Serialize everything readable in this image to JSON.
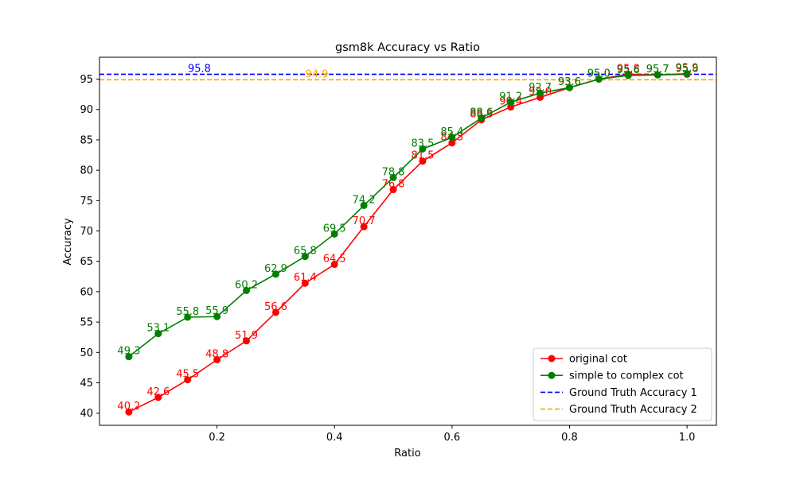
{
  "chart_data": {
    "type": "line",
    "title": "gsm8k Accuracy vs Ratio",
    "xlabel": "Ratio",
    "ylabel": "Accuracy",
    "xlim": [
      0.0,
      1.05
    ],
    "ylim": [
      38,
      98.6
    ],
    "xticks": [
      0.2,
      0.4,
      0.6,
      0.8,
      1.0
    ],
    "xtick_labels": [
      "0.2",
      "0.4",
      "0.6",
      "0.8",
      "1.0"
    ],
    "yticks": [
      40,
      45,
      50,
      55,
      60,
      65,
      70,
      75,
      80,
      85,
      90,
      95
    ],
    "ytick_labels": [
      "40",
      "45",
      "50",
      "55",
      "60",
      "65",
      "70",
      "75",
      "80",
      "85",
      "90",
      "95"
    ],
    "grid": false,
    "legend_position": "bottom-right",
    "x": [
      0.05,
      0.1,
      0.15,
      0.2,
      0.25,
      0.3,
      0.35,
      0.4,
      0.45,
      0.5,
      0.55,
      0.6,
      0.65,
      0.7,
      0.75,
      0.8,
      0.85,
      0.9,
      0.95,
      1.0
    ],
    "series": [
      {
        "name": "original cot",
        "color": "#ff0000",
        "marker": "circle",
        "values": [
          40.2,
          42.6,
          45.5,
          48.8,
          51.9,
          56.6,
          61.4,
          64.5,
          70.7,
          76.8,
          81.5,
          84.5,
          88.3,
          90.4,
          92.0,
          93.6,
          95.0,
          95.8,
          95.7,
          95.8
        ],
        "labels": [
          "40.2",
          "42.6",
          "45.5",
          "48.8",
          "51.9",
          "56.6",
          "61.4",
          "64.5",
          "70.7",
          "76.8",
          "81.5",
          "84.5",
          "88.3",
          "90.4",
          "92.0",
          "93.6",
          "95.0",
          "95.8",
          "95.7",
          "95.8"
        ]
      },
      {
        "name": "simple to complex cot",
        "color": "#008000",
        "marker": "circle",
        "values": [
          49.3,
          53.1,
          55.8,
          55.9,
          60.2,
          62.9,
          65.8,
          69.5,
          74.2,
          78.8,
          83.5,
          85.4,
          88.6,
          91.2,
          92.7,
          93.6,
          95.0,
          95.6,
          95.7,
          95.9
        ],
        "labels": [
          "49.3",
          "53.1",
          "55.8",
          "55.9",
          "60.2",
          "62.9",
          "65.8",
          "69.5",
          "74.2",
          "78.8",
          "83.5",
          "85.4",
          "88.6",
          "91.2",
          "92.7",
          "93.6",
          "95.0",
          "95.6",
          "95.7",
          "95.9"
        ]
      }
    ],
    "reference_lines": [
      {
        "name": "Ground Truth Accuracy 1",
        "value": 95.8,
        "label": "95.8",
        "label_x": 0.17,
        "color": "#0000ff",
        "style": "dashed"
      },
      {
        "name": "Ground Truth Accuracy 2",
        "value": 94.9,
        "label": "94.9",
        "label_x": 0.37,
        "color": "#ffa500",
        "style": "dashed"
      }
    ]
  }
}
